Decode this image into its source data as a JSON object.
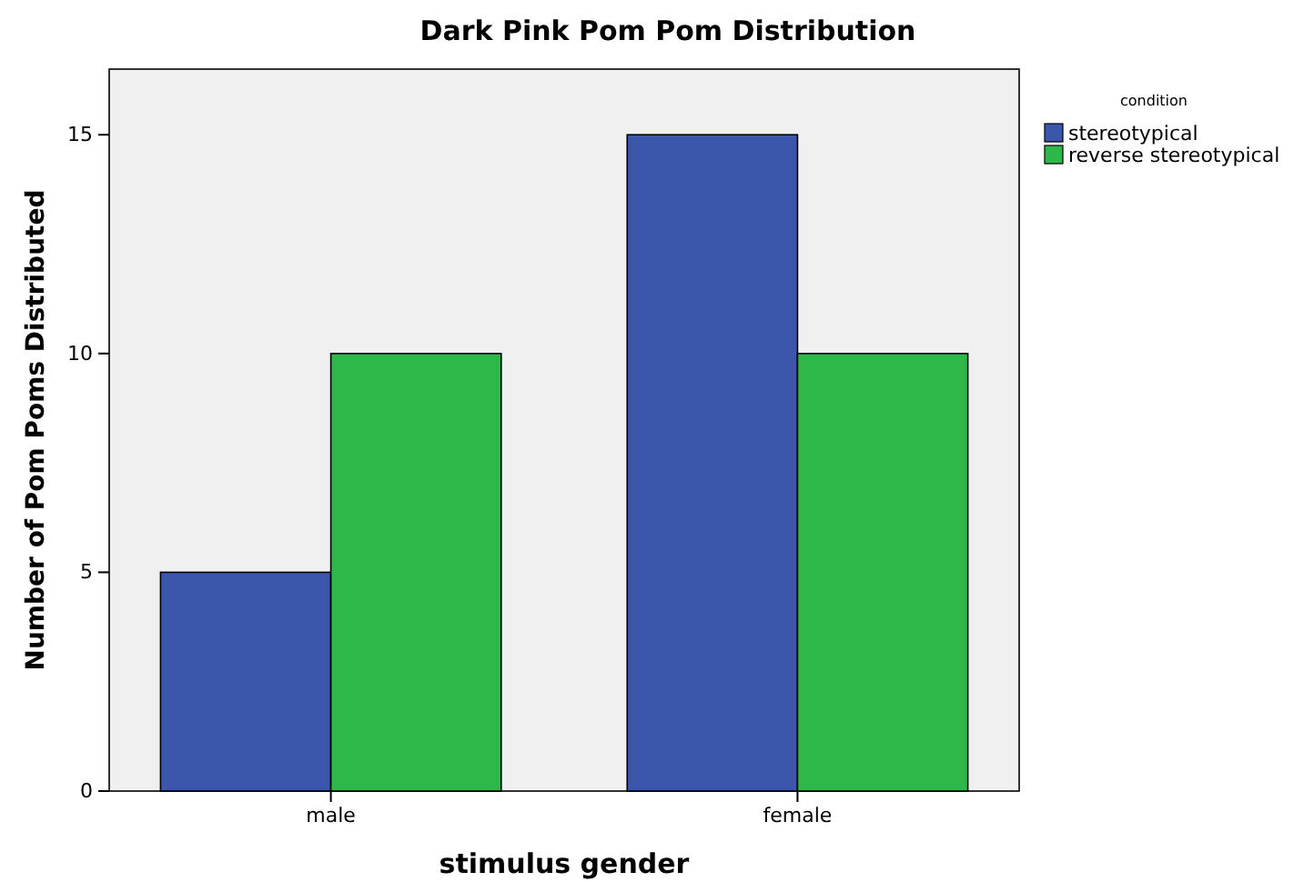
{
  "chart_data": {
    "type": "bar",
    "title": "Dark Pink Pom Pom Distribution",
    "xlabel": "stimulus gender",
    "ylabel": "Number of Pom Poms Distributed",
    "legend_title": "condition",
    "categories": [
      "male",
      "female"
    ],
    "series": [
      {
        "name": "stereotypical",
        "color": "#3c56ab",
        "values": [
          5,
          15
        ]
      },
      {
        "name": "reverse stereotypical",
        "color": "#2eb84a",
        "values": [
          10,
          10
        ]
      }
    ],
    "ylim": [
      0,
      16.5
    ],
    "yticks": [
      0,
      5,
      10,
      15
    ],
    "grid": false,
    "legend": "top right"
  }
}
